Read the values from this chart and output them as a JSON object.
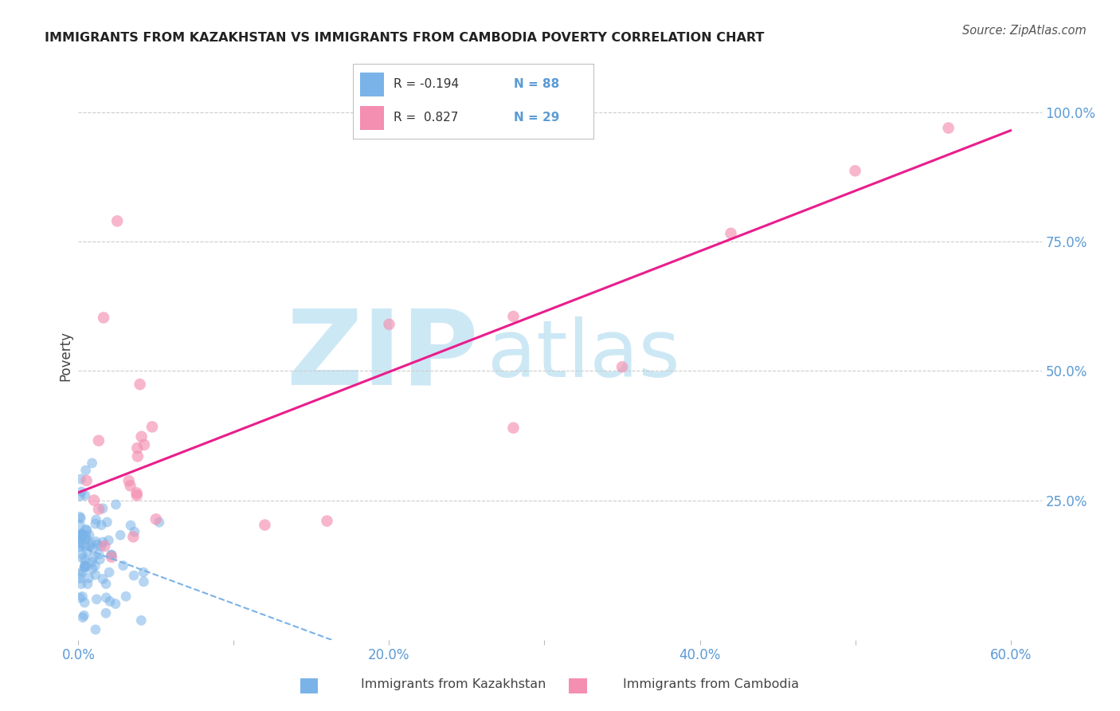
{
  "title": "IMMIGRANTS FROM KAZAKHSTAN VS IMMIGRANTS FROM CAMBODIA POVERTY CORRELATION CHART",
  "source": "Source: ZipAtlas.com",
  "tick_color": "#5b9bd5",
  "ylabel": "Poverty",
  "xlim": [
    0.0,
    0.62
  ],
  "ylim": [
    -0.02,
    1.08
  ],
  "xtick_labels": [
    "0.0%",
    "",
    "20.0%",
    "",
    "40.0%",
    "",
    "60.0%"
  ],
  "xtick_values": [
    0.0,
    0.1,
    0.2,
    0.3,
    0.4,
    0.5,
    0.6
  ],
  "ytick_right_labels": [
    "25.0%",
    "50.0%",
    "75.0%",
    "100.0%"
  ],
  "ytick_right_values": [
    0.25,
    0.5,
    0.75,
    1.0
  ],
  "grid_color": "#cccccc",
  "background_color": "#ffffff",
  "watermark_color": "#cde8f5",
  "series1_label": "Immigrants from Kazakhstan",
  "series1_color": "#7ab3e8",
  "series1_R": -0.194,
  "series1_N": 88,
  "series2_label": "Immigrants from Cambodia",
  "series2_color": "#f48fb1",
  "series2_R": 0.827,
  "series2_N": 29,
  "series2_trend_color": "#e91e8c",
  "legend_R1": "R = -0.194",
  "legend_N1": "N = 88",
  "legend_R2": "R =  0.827",
  "legend_N2": "N = 29"
}
